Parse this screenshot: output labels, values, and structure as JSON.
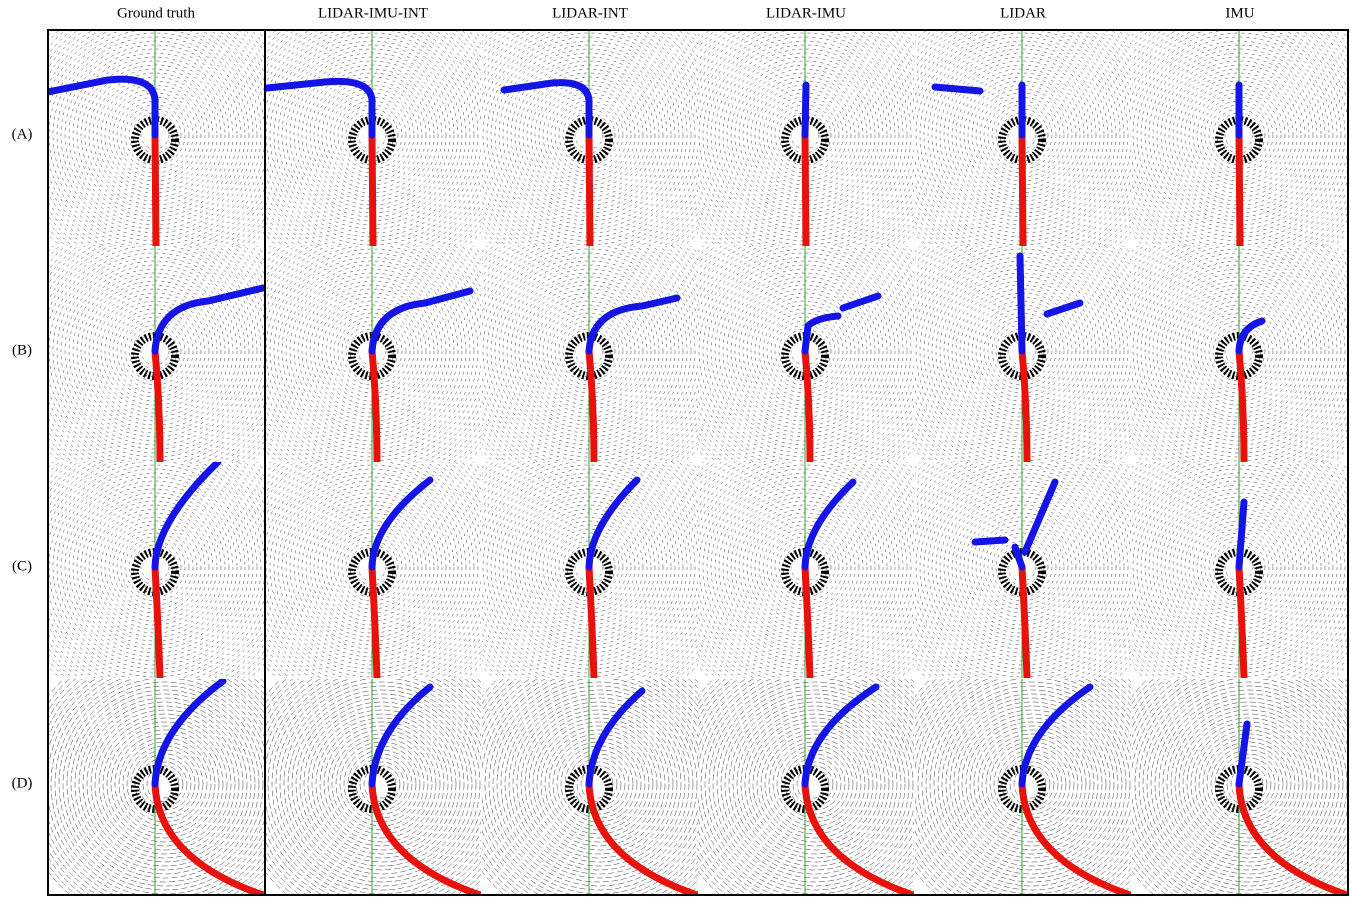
{
  "columns": [
    "Ground truth",
    "LIDAR-IMU-INT",
    "LIDAR-INT",
    "LIDAR-IMU",
    "LIDAR",
    "IMU"
  ],
  "rows": [
    "(A)",
    "(B)",
    "(C)",
    "(D)"
  ]
}
